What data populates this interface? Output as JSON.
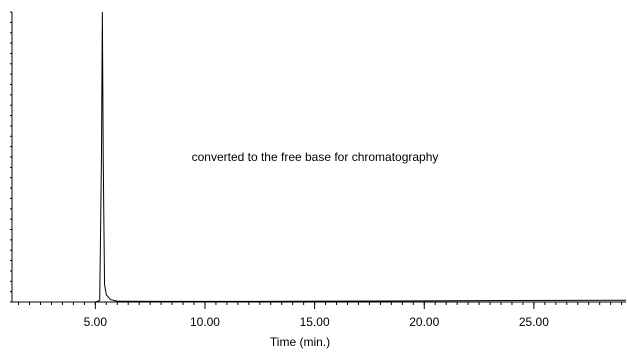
{
  "chart_data": {
    "type": "line",
    "title": "",
    "xlabel": "Time (min.)",
    "ylabel": "",
    "annotation": "converted to the free base for chromatography",
    "xlim": [
      1.2,
      29.2
    ],
    "ylim": [
      0,
      1
    ],
    "x_ticks": [
      5.0,
      10.0,
      15.0,
      20.0,
      25.0
    ],
    "x_tick_labels": [
      "5.00",
      "10.00",
      "15.00",
      "20.00",
      "25.00"
    ],
    "grid": false,
    "series": [
      {
        "values_x": [
          1.2,
          3.0,
          5.0,
          5.2,
          5.28,
          5.32,
          5.36,
          5.42,
          5.5,
          5.7,
          6.0,
          8.0,
          12.0,
          16.0,
          20.0,
          24.0,
          29.2
        ],
        "values_y": [
          0.0,
          0.0,
          0.0,
          0.005,
          0.5,
          1.0,
          0.5,
          0.06,
          0.025,
          0.008,
          0.003,
          0.002,
          0.002,
          0.003,
          0.004,
          0.005,
          0.006
        ]
      }
    ]
  }
}
